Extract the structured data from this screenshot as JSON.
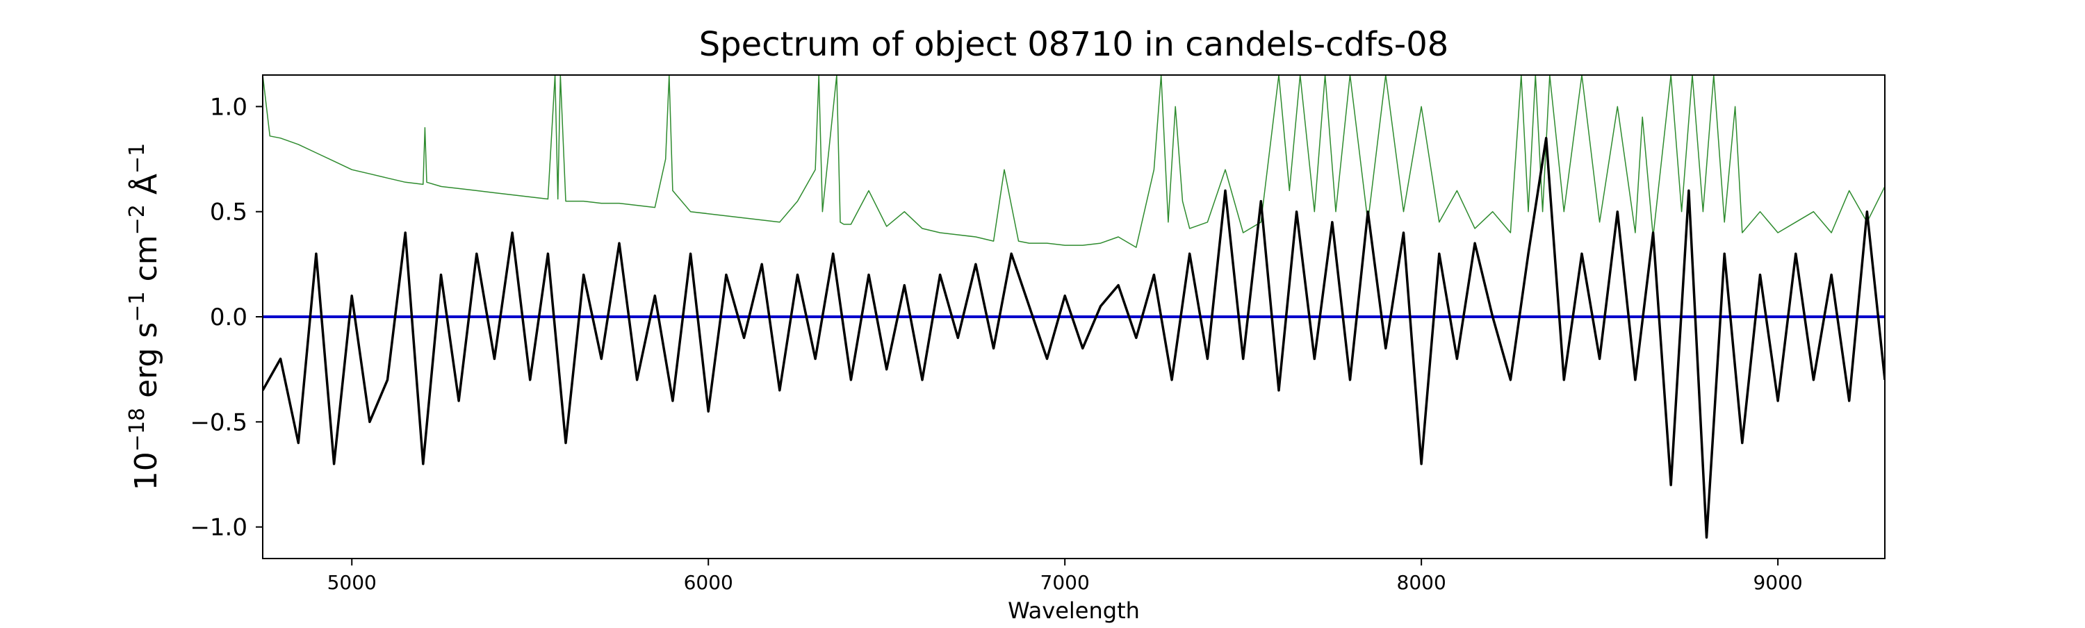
{
  "chart_data": {
    "type": "line",
    "title": "Spectrum of object 08710 in candels-cdfs-08",
    "xlabel": "Wavelength",
    "ylabel": "10^-18 erg s^-1 cm^-2 Å^-1",
    "xlim": [
      4750,
      9300
    ],
    "ylim": [
      -1.15,
      1.15
    ],
    "x_ticks": [
      5000,
      6000,
      7000,
      8000,
      9000
    ],
    "y_ticks": [
      -1.0,
      -0.5,
      0.0,
      0.5,
      1.0
    ],
    "y_tick_labels": [
      "−1.0",
      "−0.5",
      "0.0",
      "0.5",
      "1.0"
    ],
    "grid": false,
    "colors": {
      "flux": "#000000",
      "error": "#2e8b2e",
      "zero": "#0000cc"
    },
    "series": [
      {
        "role": "flux",
        "x": [
          4750,
          4800,
          4850,
          4900,
          4950,
          5000,
          5050,
          5100,
          5150,
          5200,
          5250,
          5300,
          5350,
          5400,
          5450,
          5500,
          5550,
          5600,
          5650,
          5700,
          5750,
          5800,
          5850,
          5900,
          5950,
          6000,
          6050,
          6100,
          6150,
          6200,
          6250,
          6300,
          6350,
          6400,
          6450,
          6500,
          6550,
          6600,
          6650,
          6700,
          6750,
          6800,
          6850,
          6900,
          6950,
          7000,
          7050,
          7100,
          7150,
          7200,
          7250,
          7300,
          7350,
          7400,
          7450,
          7500,
          7550,
          7600,
          7650,
          7700,
          7750,
          7800,
          7850,
          7900,
          7950,
          8000,
          8050,
          8100,
          8150,
          8200,
          8250,
          8300,
          8350,
          8400,
          8450,
          8500,
          8550,
          8600,
          8650,
          8700,
          8750,
          8800,
          8850,
          8900,
          8950,
          9000,
          9050,
          9100,
          9150,
          9200,
          9250,
          9300
        ],
        "y": [
          -0.35,
          -0.2,
          -0.6,
          0.3,
          -0.7,
          0.1,
          -0.5,
          -0.3,
          0.4,
          -0.7,
          0.2,
          -0.4,
          0.3,
          -0.2,
          0.4,
          -0.3,
          0.3,
          -0.6,
          0.2,
          -0.2,
          0.35,
          -0.3,
          0.1,
          -0.4,
          0.3,
          -0.45,
          0.2,
          -0.1,
          0.25,
          -0.35,
          0.2,
          -0.2,
          0.3,
          -0.3,
          0.2,
          -0.25,
          0.15,
          -0.3,
          0.2,
          -0.1,
          0.25,
          -0.15,
          0.3,
          0.05,
          -0.2,
          0.1,
          -0.15,
          0.05,
          0.15,
          -0.1,
          0.2,
          -0.3,
          0.3,
          -0.2,
          0.6,
          -0.2,
          0.55,
          -0.35,
          0.5,
          -0.2,
          0.45,
          -0.3,
          0.5,
          -0.15,
          0.4,
          -0.7,
          0.3,
          -0.2,
          0.35,
          0.0,
          -0.3,
          0.3,
          0.85,
          -0.3,
          0.3,
          -0.2,
          0.5,
          -0.3,
          0.4,
          -0.8,
          0.6,
          -1.05,
          0.3,
          -0.6,
          0.2,
          -0.4,
          0.3,
          -0.3,
          0.2,
          -0.4,
          0.5,
          -0.3
        ]
      },
      {
        "role": "error",
        "x": [
          4750,
          4770,
          4800,
          4850,
          4900,
          4950,
          5000,
          5050,
          5100,
          5150,
          5200,
          5205,
          5210,
          5250,
          5300,
          5350,
          5400,
          5450,
          5500,
          5550,
          5570,
          5578,
          5585,
          5600,
          5650,
          5700,
          5750,
          5800,
          5850,
          5880,
          5890,
          5900,
          5950,
          6000,
          6050,
          6100,
          6150,
          6200,
          6250,
          6300,
          6310,
          6320,
          6360,
          6370,
          6380,
          6400,
          6450,
          6500,
          6550,
          6600,
          6650,
          6700,
          6750,
          6800,
          6830,
          6870,
          6900,
          6950,
          7000,
          7050,
          7100,
          7150,
          7200,
          7250,
          7270,
          7290,
          7310,
          7330,
          7350,
          7400,
          7450,
          7500,
          7550,
          7600,
          7630,
          7660,
          7700,
          7730,
          7760,
          7800,
          7850,
          7900,
          7950,
          8000,
          8050,
          8100,
          8150,
          8200,
          8250,
          8280,
          8300,
          8320,
          8340,
          8360,
          8400,
          8450,
          8500,
          8550,
          8600,
          8620,
          8650,
          8700,
          8730,
          8760,
          8790,
          8820,
          8850,
          8880,
          8900,
          8950,
          9000,
          9050,
          9100,
          9150,
          9200,
          9250,
          9300
        ],
        "y": [
          1.15,
          0.86,
          0.85,
          0.82,
          0.78,
          0.74,
          0.7,
          0.68,
          0.66,
          0.64,
          0.63,
          0.9,
          0.64,
          0.62,
          0.61,
          0.6,
          0.59,
          0.58,
          0.57,
          0.56,
          1.15,
          0.56,
          1.15,
          0.55,
          0.55,
          0.54,
          0.54,
          0.53,
          0.52,
          0.75,
          1.15,
          0.6,
          0.5,
          0.49,
          0.48,
          0.47,
          0.46,
          0.45,
          0.55,
          0.7,
          1.15,
          0.5,
          1.15,
          0.45,
          0.44,
          0.44,
          0.6,
          0.43,
          0.5,
          0.42,
          0.4,
          0.39,
          0.38,
          0.36,
          0.7,
          0.36,
          0.35,
          0.35,
          0.34,
          0.34,
          0.35,
          0.38,
          0.33,
          0.7,
          1.15,
          0.45,
          1.0,
          0.55,
          0.42,
          0.45,
          0.7,
          0.4,
          0.45,
          1.15,
          0.6,
          1.15,
          0.5,
          1.15,
          0.5,
          1.15,
          0.45,
          1.15,
          0.5,
          1.0,
          0.45,
          0.6,
          0.42,
          0.5,
          0.4,
          1.15,
          0.5,
          1.15,
          0.5,
          1.15,
          0.5,
          1.15,
          0.45,
          1.0,
          0.4,
          0.95,
          0.38,
          1.15,
          0.5,
          1.15,
          0.5,
          1.15,
          0.45,
          1.0,
          0.4,
          0.5,
          0.4,
          0.45,
          0.5,
          0.4,
          0.6,
          0.45,
          0.62
        ]
      },
      {
        "role": "zero",
        "x": [
          4750,
          9300
        ],
        "y": [
          0,
          0
        ]
      }
    ]
  }
}
